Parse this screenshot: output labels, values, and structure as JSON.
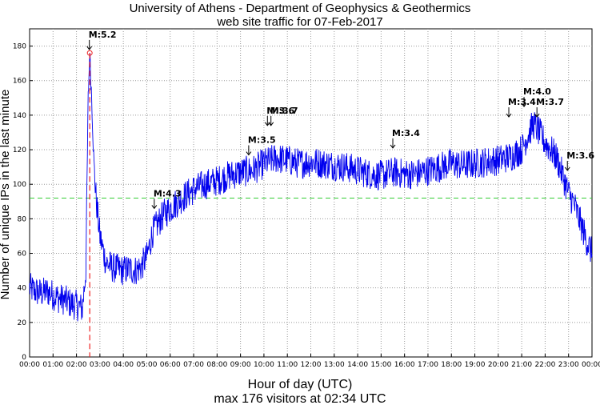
{
  "chart_data": {
    "type": "line",
    "title": "University of Athens - Department of Geophysics & Geothermics",
    "subtitle": "web site traffic for 07-Feb-2017",
    "xlabel": "Hour of day (UTC)",
    "ylabel": "Number of unique IPs in the last minute",
    "footer": "max 176 visitors at 02:34 UTC",
    "xlim": [
      0,
      24
    ],
    "ylim": [
      0,
      190
    ],
    "yticks": [
      0,
      20,
      40,
      60,
      80,
      100,
      120,
      140,
      160,
      180
    ],
    "xtick_labels": [
      "00:00",
      "01:00",
      "02:00",
      "03:00",
      "04:00",
      "05:00",
      "06:00",
      "07:00",
      "08:00",
      "09:00",
      "10:00",
      "11:00",
      "12:00",
      "13:00",
      "14:00",
      "15:00",
      "16:00",
      "17:00",
      "18:00",
      "19:00",
      "20:00",
      "21:00",
      "22:00",
      "23:00",
      "00:00"
    ],
    "grid": true,
    "series_color": "#0000ee",
    "average_line": {
      "value": 92,
      "color": "#33cc33"
    },
    "max_marker": {
      "hour": 2.567,
      "value": 176,
      "color": "#ee2222"
    },
    "series": [
      {
        "x": [
          0,
          0.25,
          0.5,
          0.75,
          1,
          1.25,
          1.5,
          1.75,
          2,
          2.25,
          2.4,
          2.5,
          2.567,
          2.65,
          2.75,
          2.85,
          3,
          3.25,
          3.5,
          3.75,
          4,
          4.25,
          4.5,
          4.75,
          5,
          5.25,
          5.5,
          5.75,
          6,
          6.5,
          7,
          7.5,
          8,
          8.5,
          9,
          9.5,
          10,
          10.5,
          11,
          11.5,
          12,
          12.5,
          13,
          13.5,
          14,
          14.5,
          15,
          15.5,
          16,
          16.5,
          17,
          17.5,
          18,
          18.5,
          19,
          19.5,
          20,
          20.5,
          21,
          21.25,
          21.5,
          21.75,
          22,
          22.25,
          22.5,
          22.75,
          23,
          23.25,
          23.5,
          23.75,
          24
        ],
        "y": [
          40,
          38,
          37,
          38,
          36,
          34,
          33,
          31,
          30,
          28,
          50,
          150,
          176,
          150,
          110,
          90,
          70,
          55,
          52,
          51,
          50,
          51,
          50,
          52,
          58,
          72,
          78,
          83,
          86,
          92,
          97,
          100,
          102,
          105,
          107,
          108,
          112,
          115,
          114,
          112,
          113,
          112,
          111,
          110,
          108,
          106,
          105,
          107,
          106,
          106,
          108,
          110,
          112,
          111,
          112,
          113,
          114,
          116,
          120,
          128,
          135,
          130,
          124,
          120,
          115,
          105,
          95,
          88,
          78,
          68,
          60
        ]
      }
    ],
    "annotations": [
      {
        "label": "M:5.2",
        "hour": 2.55,
        "value": 178
      },
      {
        "label": "M:4.3",
        "hour": 5.32,
        "value": 86
      },
      {
        "label": "M:3.5",
        "hour": 9.35,
        "value": 117
      },
      {
        "label": "M:3.6",
        "hour": 10.15,
        "value": 134
      },
      {
        "label": "M:3.7",
        "hour": 10.3,
        "value": 134
      },
      {
        "label": "M:3.4",
        "hour": 15.5,
        "value": 121
      },
      {
        "label": "M:3.4",
        "hour": 20.45,
        "value": 139
      },
      {
        "label": "M:4.0",
        "hour": 21.1,
        "value": 145
      },
      {
        "label": "M:3.7",
        "hour": 21.65,
        "value": 139
      },
      {
        "label": "M:3.6",
        "hour": 22.95,
        "value": 108
      }
    ]
  }
}
